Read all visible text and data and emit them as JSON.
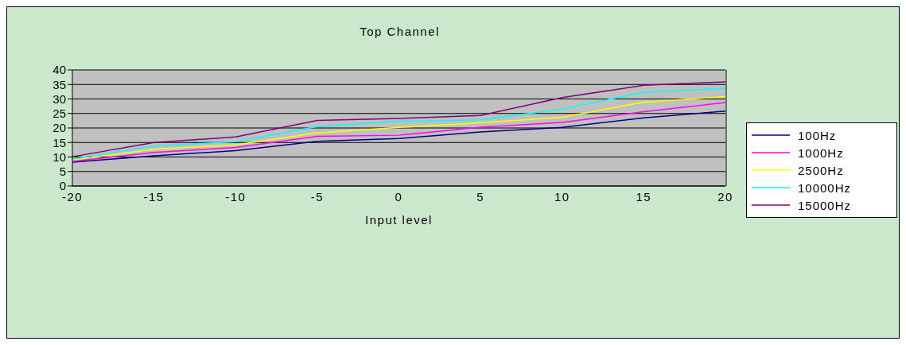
{
  "chart_data": {
    "type": "line",
    "title": "Top Channel",
    "xlabel": "Input level",
    "categories": [
      "-20",
      "-15",
      "-10",
      "-5",
      "0",
      "5",
      "10",
      "15",
      "20"
    ],
    "series": [
      {
        "name": "100Hz",
        "color": "#000080",
        "values": [
          8.2,
          10.4,
          12.2,
          15.4,
          16.4,
          18.6,
          20.2,
          23.5,
          25.8
        ]
      },
      {
        "name": "1000Hz",
        "color": "#ff00ff",
        "values": [
          8.5,
          11.6,
          13.3,
          17.1,
          17.5,
          20.3,
          21.9,
          25.6,
          28.8
        ]
      },
      {
        "name": "2500Hz",
        "color": "#ffff00",
        "values": [
          9.0,
          12.7,
          14.2,
          18.3,
          20.2,
          21.8,
          23.7,
          28.9,
          30.8
        ]
      },
      {
        "name": "10000Hz",
        "color": "#00ffff",
        "values": [
          9.3,
          13.8,
          15.3,
          20.5,
          22.3,
          22.8,
          26.5,
          32.3,
          33.6
        ]
      },
      {
        "name": "15000Hz",
        "color": "#800080",
        "values": [
          10.1,
          15.0,
          16.9,
          22.6,
          23.3,
          24.3,
          30.5,
          34.7,
          35.9
        ]
      }
    ],
    "ylim": [
      0,
      40
    ],
    "yticks": [
      0,
      5,
      10,
      15,
      20,
      25,
      30,
      35,
      40
    ],
    "grid": "y",
    "legend": "right",
    "marker": "none",
    "line_style": "solid"
  }
}
